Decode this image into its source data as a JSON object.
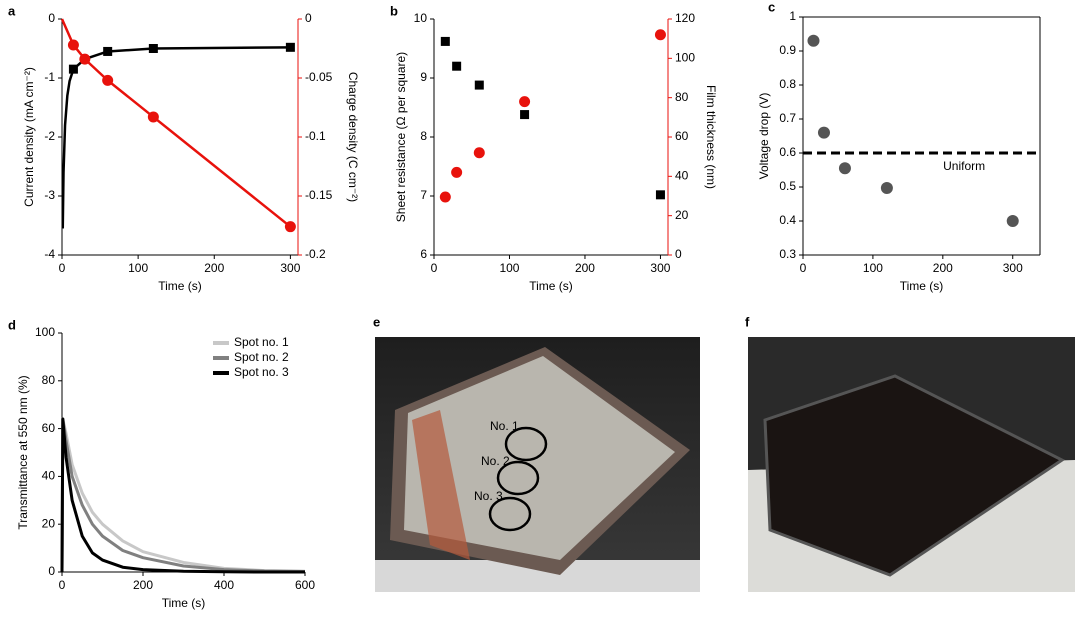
{
  "chart_data": [
    {
      "type": "line",
      "label": "a",
      "xlabel": "Time (s)",
      "ylabel": "Current density (mA cm⁻²)",
      "y2label": "Charge density (C cm⁻²)",
      "y2color": "#e8120c",
      "xlim": [
        0,
        310
      ],
      "xticks": [
        0,
        100,
        200,
        300
      ],
      "ylim": [
        -4,
        0
      ],
      "yticks": [
        -4,
        -3,
        -2,
        -1,
        0
      ],
      "y2lim": [
        -0.2,
        0
      ],
      "y2ticks": [
        -0.2,
        -0.15,
        -0.1,
        -0.05,
        0
      ],
      "series": [
        {
          "style": "line",
          "color": "#000000",
          "x": [
            1,
            2,
            4,
            7,
            10,
            15,
            30,
            60,
            120,
            300
          ],
          "values": [
            -3.55,
            -2.6,
            -1.8,
            -1.3,
            -1.05,
            -0.85,
            -0.68,
            -0.55,
            -0.5,
            -0.48
          ]
        },
        {
          "style": "marker",
          "marker": "square",
          "color": "#000000",
          "x": [
            15,
            60,
            120,
            300
          ],
          "values": [
            -0.85,
            -0.55,
            -0.5,
            -0.48
          ]
        },
        {
          "style": "line",
          "axis": "y2",
          "color": "#e8120c",
          "x": [
            0,
            15,
            30,
            60,
            120,
            300
          ],
          "values": [
            0,
            -0.022,
            -0.034,
            -0.052,
            -0.083,
            -0.176
          ]
        },
        {
          "style": "marker",
          "marker": "circle",
          "axis": "y2",
          "color": "#e8120c",
          "x": [
            15,
            30,
            60,
            120,
            300
          ],
          "values": [
            -0.022,
            -0.034,
            -0.052,
            -0.083,
            -0.176
          ]
        }
      ]
    },
    {
      "type": "scatter",
      "label": "b",
      "xlabel": "Time (s)",
      "ylabel": "Sheet resistance (Ω per square)",
      "y2label": "Film thickness (nm)",
      "y2color": "#e8120c",
      "xlim": [
        0,
        310
      ],
      "xticks": [
        0,
        100,
        200,
        300
      ],
      "ylim": [
        6,
        10
      ],
      "yticks": [
        6,
        7,
        8,
        9,
        10
      ],
      "y2lim": [
        0,
        120
      ],
      "y2ticks": [
        0,
        20,
        40,
        60,
        80,
        100,
        120
      ],
      "series": [
        {
          "style": "marker",
          "marker": "square",
          "color": "#000000",
          "x": [
            15,
            30,
            60,
            120,
            300
          ],
          "values": [
            9.62,
            9.2,
            8.88,
            8.38,
            7.02
          ]
        },
        {
          "style": "marker",
          "marker": "circle",
          "axis": "y2",
          "color": "#e8120c",
          "x": [
            15,
            30,
            60,
            120,
            300
          ],
          "values": [
            29.5,
            42,
            52,
            78,
            112
          ]
        }
      ]
    },
    {
      "type": "scatter",
      "label": "c",
      "xlabel": "Time (s)",
      "ylabel": "Voltage drop (V)",
      "box": true,
      "xlim": [
        0,
        339
      ],
      "xticks": [
        0,
        100,
        200,
        300
      ],
      "ylim": [
        0.3,
        1
      ],
      "yticks": [
        0.3,
        0.4,
        0.5,
        0.6,
        0.7,
        0.8,
        0.9,
        1
      ],
      "reference_line": {
        "value": 0.6,
        "label": "Uniform"
      },
      "series": [
        {
          "style": "marker",
          "marker": "circle",
          "color": "#555555",
          "x": [
            15,
            30,
            60,
            120,
            300
          ],
          "values": [
            0.93,
            0.66,
            0.555,
            0.497,
            0.4
          ]
        }
      ]
    },
    {
      "type": "line",
      "label": "d",
      "xlabel": "Time (s)",
      "ylabel": "Transmittance at 550 nm (%)",
      "legend": "upper right",
      "xlim": [
        0,
        600
      ],
      "xticks": [
        0,
        200,
        400,
        600
      ],
      "ylim": [
        0,
        100
      ],
      "yticks": [
        0,
        20,
        40,
        60,
        80,
        100
      ],
      "series": [
        {
          "name": "Spot no. 1",
          "style": "line",
          "color": "#c8c8c8",
          "x": [
            0,
            2,
            10,
            25,
            50,
            75,
            100,
            150,
            200,
            300,
            400,
            500,
            600
          ],
          "values": [
            0,
            64,
            58,
            45,
            33,
            25,
            20,
            13,
            8.5,
            4,
            1.5,
            0.6,
            0.3
          ]
        },
        {
          "name": "Spot no. 2",
          "style": "line",
          "color": "#808080",
          "x": [
            0,
            2,
            10,
            25,
            50,
            75,
            100,
            150,
            200,
            300,
            400,
            500,
            600
          ],
          "values": [
            0,
            64,
            55,
            40,
            28,
            20,
            15,
            9,
            6,
            2.5,
            1,
            0.4,
            0.2
          ]
        },
        {
          "name": "Spot no. 3",
          "style": "line",
          "color": "#000000",
          "x": [
            0,
            2,
            10,
            25,
            50,
            75,
            100,
            150,
            200,
            300,
            400,
            500,
            600
          ],
          "values": [
            0,
            64,
            48,
            30,
            15,
            8,
            5,
            2,
            1,
            0.3,
            0.1,
            0,
            0
          ]
        }
      ]
    }
  ],
  "photos": [
    {
      "label": "e",
      "annotations": [
        "No. 1",
        "No. 2",
        "No. 3"
      ]
    },
    {
      "label": "f"
    }
  ]
}
